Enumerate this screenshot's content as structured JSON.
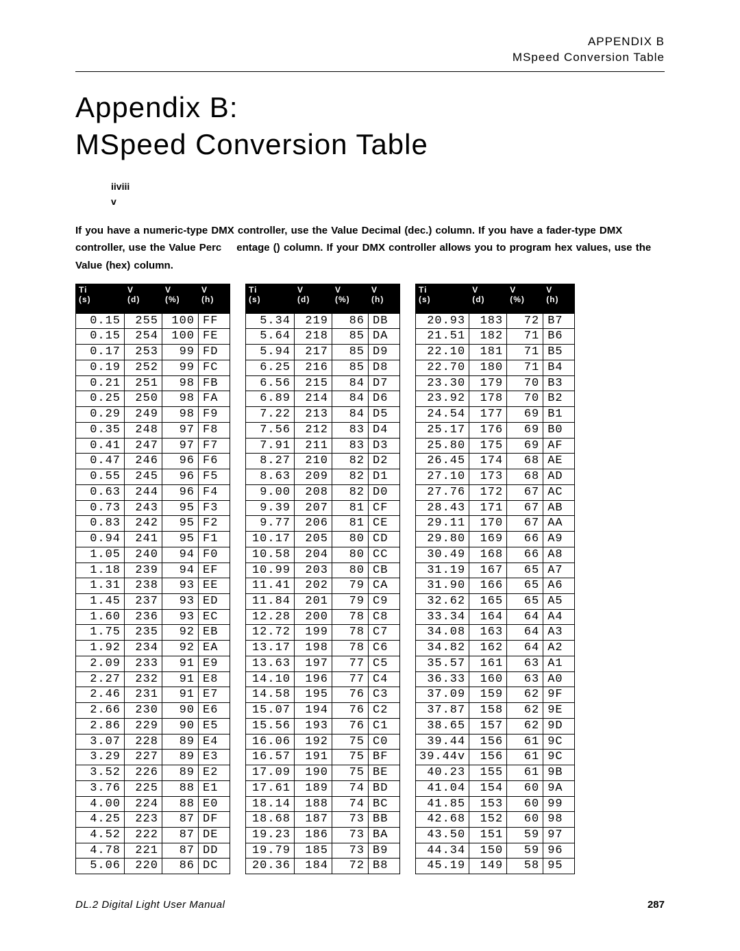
{
  "header": {
    "line1": "APPENDIX   B",
    "line2": "MSpeed Conversion Table"
  },
  "titles": {
    "appendix": "Appendix B:",
    "subtitle": "MSpeed Conversion Table"
  },
  "iiv": {
    "l1": "iiviii",
    "l2": "v"
  },
  "instructions": {
    "seg1": "If you have a numeric-type DMX controller, use the Value Decimal (dec.) column. If you have a fader-type DMX controller, use the Value Perc",
    "seg2": "entage () column. If your DMX controller allows you to program hex values, use the Value (hex) column."
  },
  "columns": {
    "h1a": "Ti",
    "h1b": "(s)",
    "h2a": "V",
    "h2b": "(d)",
    "h3a": "V",
    "h3b": "(%)",
    "h4a": "V",
    "h4b": "(h)"
  },
  "tables": [
    {
      "rows": [
        [
          "0.15",
          "255",
          "100",
          "FF"
        ],
        [
          "0.15",
          "254",
          "100",
          "FE"
        ],
        [
          "0.17",
          "253",
          "99",
          "FD"
        ],
        [
          "0.19",
          "252",
          "99",
          "FC"
        ],
        [
          "0.21",
          "251",
          "98",
          "FB"
        ],
        [
          "0.25",
          "250",
          "98",
          "FA"
        ],
        [
          "0.29",
          "249",
          "98",
          "F9"
        ],
        [
          "0.35",
          "248",
          "97",
          "F8"
        ],
        [
          "0.41",
          "247",
          "97",
          "F7"
        ],
        [
          "0.47",
          "246",
          "96",
          "F6"
        ],
        [
          "0.55",
          "245",
          "96",
          "F5"
        ],
        [
          "0.63",
          "244",
          "96",
          "F4"
        ],
        [
          "0.73",
          "243",
          "95",
          "F3"
        ],
        [
          "0.83",
          "242",
          "95",
          "F2"
        ],
        [
          "0.94",
          "241",
          "95",
          "F1"
        ],
        [
          "1.05",
          "240",
          "94",
          "F0"
        ],
        [
          "1.18",
          "239",
          "94",
          "EF"
        ],
        [
          "1.31",
          "238",
          "93",
          "EE"
        ],
        [
          "1.45",
          "237",
          "93",
          "ED"
        ],
        [
          "1.60",
          "236",
          "93",
          "EC"
        ],
        [
          "1.75",
          "235",
          "92",
          "EB"
        ],
        [
          "1.92",
          "234",
          "92",
          "EA"
        ],
        [
          "2.09",
          "233",
          "91",
          "E9"
        ],
        [
          "2.27",
          "232",
          "91",
          "E8"
        ],
        [
          "2.46",
          "231",
          "91",
          "E7"
        ],
        [
          "2.66",
          "230",
          "90",
          "E6"
        ],
        [
          "2.86",
          "229",
          "90",
          "E5"
        ],
        [
          "3.07",
          "228",
          "89",
          "E4"
        ],
        [
          "3.29",
          "227",
          "89",
          "E3"
        ],
        [
          "3.52",
          "226",
          "89",
          "E2"
        ],
        [
          "3.76",
          "225",
          "88",
          "E1"
        ],
        [
          "4.00",
          "224",
          "88",
          "E0"
        ],
        [
          "4.25",
          "223",
          "87",
          "DF"
        ],
        [
          "4.52",
          "222",
          "87",
          "DE"
        ],
        [
          "4.78",
          "221",
          "87",
          "DD"
        ],
        [
          "5.06",
          "220",
          "86",
          "DC"
        ]
      ]
    },
    {
      "rows": [
        [
          "5.34",
          "219",
          "86",
          "DB"
        ],
        [
          "5.64",
          "218",
          "85",
          "DA"
        ],
        [
          "5.94",
          "217",
          "85",
          "D9"
        ],
        [
          "6.25",
          "216",
          "85",
          "D8"
        ],
        [
          "6.56",
          "215",
          "84",
          "D7"
        ],
        [
          "6.89",
          "214",
          "84",
          "D6"
        ],
        [
          "7.22",
          "213",
          "84",
          "D5"
        ],
        [
          "7.56",
          "212",
          "83",
          "D4"
        ],
        [
          "7.91",
          "211",
          "83",
          "D3"
        ],
        [
          "8.27",
          "210",
          "82",
          "D2"
        ],
        [
          "8.63",
          "209",
          "82",
          "D1"
        ],
        [
          "9.00",
          "208",
          "82",
          "D0"
        ],
        [
          "9.39",
          "207",
          "81",
          "CF"
        ],
        [
          "9.77",
          "206",
          "81",
          "CE"
        ],
        [
          "10.17",
          "205",
          "80",
          "CD"
        ],
        [
          "10.58",
          "204",
          "80",
          "CC"
        ],
        [
          "10.99",
          "203",
          "80",
          "CB"
        ],
        [
          "11.41",
          "202",
          "79",
          "CA"
        ],
        [
          "11.84",
          "201",
          "79",
          "C9"
        ],
        [
          "12.28",
          "200",
          "78",
          "C8"
        ],
        [
          "12.72",
          "199",
          "78",
          "C7"
        ],
        [
          "13.17",
          "198",
          "78",
          "C6"
        ],
        [
          "13.63",
          "197",
          "77",
          "C5"
        ],
        [
          "14.10",
          "196",
          "77",
          "C4"
        ],
        [
          "14.58",
          "195",
          "76",
          "C3"
        ],
        [
          "15.07",
          "194",
          "76",
          "C2"
        ],
        [
          "15.56",
          "193",
          "76",
          "C1"
        ],
        [
          "16.06",
          "192",
          "75",
          "C0"
        ],
        [
          "16.57",
          "191",
          "75",
          "BF"
        ],
        [
          "17.09",
          "190",
          "75",
          "BE"
        ],
        [
          "17.61",
          "189",
          "74",
          "BD"
        ],
        [
          "18.14",
          "188",
          "74",
          "BC"
        ],
        [
          "18.68",
          "187",
          "73",
          "BB"
        ],
        [
          "19.23",
          "186",
          "73",
          "BA"
        ],
        [
          "19.79",
          "185",
          "73",
          "B9"
        ],
        [
          "20.36",
          "184",
          "72",
          "B8"
        ]
      ]
    },
    {
      "rows": [
        [
          "20.93",
          "183",
          "72",
          "B7"
        ],
        [
          "21.51",
          "182",
          "71",
          "B6"
        ],
        [
          "22.10",
          "181",
          "71",
          "B5"
        ],
        [
          "22.70",
          "180",
          "71",
          "B4"
        ],
        [
          "23.30",
          "179",
          "70",
          "B3"
        ],
        [
          "23.92",
          "178",
          "70",
          "B2"
        ],
        [
          "24.54",
          "177",
          "69",
          "B1"
        ],
        [
          "25.17",
          "176",
          "69",
          "B0"
        ],
        [
          "25.80",
          "175",
          "69",
          "AF"
        ],
        [
          "26.45",
          "174",
          "68",
          "AE"
        ],
        [
          "27.10",
          "173",
          "68",
          "AD"
        ],
        [
          "27.76",
          "172",
          "67",
          "AC"
        ],
        [
          "28.43",
          "171",
          "67",
          "AB"
        ],
        [
          "29.11",
          "170",
          "67",
          "AA"
        ],
        [
          "29.80",
          "169",
          "66",
          "A9"
        ],
        [
          "30.49",
          "168",
          "66",
          "A8"
        ],
        [
          "31.19",
          "167",
          "65",
          "A7"
        ],
        [
          "31.90",
          "166",
          "65",
          "A6"
        ],
        [
          "32.62",
          "165",
          "65",
          "A5"
        ],
        [
          "33.34",
          "164",
          "64",
          "A4"
        ],
        [
          "34.08",
          "163",
          "64",
          "A3"
        ],
        [
          "34.82",
          "162",
          "64",
          "A2"
        ],
        [
          "35.57",
          "161",
          "63",
          "A1"
        ],
        [
          "36.33",
          "160",
          "63",
          "A0"
        ],
        [
          "37.09",
          "159",
          "62",
          "9F"
        ],
        [
          "37.87",
          "158",
          "62",
          "9E"
        ],
        [
          "38.65",
          "157",
          "62",
          "9D"
        ],
        [
          "39.44",
          "156",
          "61",
          "9C"
        ],
        [
          "39.44v",
          "156",
          "61",
          "9C"
        ],
        [
          "40.23",
          "155",
          "61",
          "9B"
        ],
        [
          "41.04",
          "154",
          "60",
          "9A"
        ],
        [
          "41.85",
          "153",
          "60",
          "99"
        ],
        [
          "42.68",
          "152",
          "60",
          "98"
        ],
        [
          "43.50",
          "151",
          "59",
          "97"
        ],
        [
          "44.34",
          "150",
          "59",
          "96"
        ],
        [
          "45.19",
          "149",
          "58",
          "95"
        ]
      ]
    }
  ],
  "footer": {
    "left": "DL.2 Digital Light User Manual",
    "page": "287"
  }
}
